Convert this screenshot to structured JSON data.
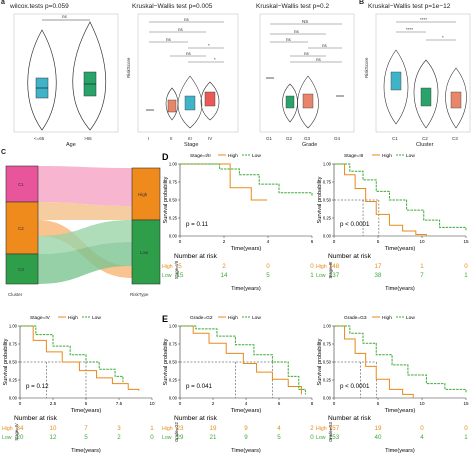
{
  "colors": {
    "high": "#e88a1a",
    "low": "#3aaa35",
    "c1": "#3fb4c9",
    "c2": "#2aa36b",
    "c3": "#e8866a",
    "sankey_pink": "#e8559a",
    "sankey_orange": "#ef8a1c",
    "sankey_green": "#2e9e4a"
  },
  "top": {
    "letter_a": "a",
    "a": {
      "title": "wilcox.tests p=0.059",
      "xlabel": "Age",
      "ylabel": "RiskScore",
      "ticks": [
        "<=65",
        ">65"
      ]
    },
    "b": {
      "title": "Kruskal−Wallis test p=0.005",
      "xlabel": "Stage",
      "ylabel": "RiskScore",
      "ticks": [
        "I",
        "II",
        "III",
        "IV"
      ],
      "sig": [
        "ns",
        "ns",
        "ns",
        "*",
        "ns",
        "*"
      ]
    },
    "c": {
      "title": "Kruskal−Wallis test p=0.2",
      "xlabel": "Grade",
      "ylabel": "RiskScore",
      "ticks": [
        "G1",
        "G2",
        "G3",
        "G4"
      ],
      "sig": [
        "NS",
        "ns",
        "ns",
        "ns",
        "ns",
        "ns"
      ]
    },
    "letter_b": "B",
    "d": {
      "title": "Kruskal−Wallis test p=1e−12",
      "xlabel": "Cluster",
      "ylabel": "RiskScore",
      "ticks": [
        "C1",
        "C2",
        "C3"
      ],
      "sig": [
        "****",
        "****",
        "*"
      ]
    }
  },
  "sankey": {
    "letter": "C",
    "left_label": "Cluster",
    "right_label": "RiskType",
    "nodes_left": [
      "C1",
      "C2",
      "C3"
    ],
    "nodes_right": [
      "High",
      "Low"
    ]
  },
  "km_plots": [
    {
      "id": "D",
      "letter": "D",
      "legend_title": "Stage=I/II",
      "pval": "p = 0.11",
      "xticks": [
        "0",
        "2",
        "4",
        "6"
      ],
      "ylabel": "Survival probability",
      "xlabel": "Time(years)",
      "risk_rows": [
        {
          "label": "High",
          "values": [
            "5",
            "2",
            "0",
            "0"
          ]
        },
        {
          "label": "Low",
          "values": [
            "15",
            "14",
            "5",
            "1"
          ]
        }
      ],
      "strata": "Stage=I/II"
    },
    {
      "id": "D2",
      "letter": "",
      "legend_title": "Stage=III",
      "pval": "p < 0.0001",
      "xticks": [
        "0",
        "5",
        "10",
        "15"
      ],
      "ylabel": "Survival probability",
      "xlabel": "Time(years)",
      "risk_rows": [
        {
          "label": "High",
          "values": [
            "148",
            "17",
            "1",
            "0"
          ]
        },
        {
          "label": "Low",
          "values": [
            "137",
            "38",
            "7",
            "1"
          ]
        }
      ],
      "strata": "Stage=III"
    },
    {
      "id": "D3",
      "letter": "",
      "legend_title": "Stage=IV",
      "pval": "p = 0.12",
      "xticks": [
        "0",
        "2.5",
        "5",
        "7.5",
        "10"
      ],
      "ylabel": "Survival probability",
      "xlabel": "Time(years)",
      "risk_rows": [
        {
          "label": "High",
          "values": [
            "34",
            "10",
            "7",
            "3",
            "1"
          ]
        },
        {
          "label": "Low",
          "values": [
            "20",
            "12",
            "5",
            "2",
            "0"
          ]
        }
      ],
      "strata": "Stage=IV"
    },
    {
      "id": "E",
      "letter": "E",
      "legend_title": "Grade=G2",
      "pval": "p = 0.041",
      "xticks": [
        "0",
        "2",
        "4",
        "6",
        "8"
      ],
      "ylabel": "Survival probability",
      "xlabel": "Time(years)",
      "risk_rows": [
        {
          "label": "High",
          "values": [
            "23",
            "19",
            "9",
            "4",
            "2"
          ]
        },
        {
          "label": "Low",
          "values": [
            "29",
            "21",
            "9",
            "5",
            "0"
          ]
        }
      ],
      "strata": "Grade=G2"
    },
    {
      "id": "E2",
      "letter": "",
      "legend_title": "Grade=G3",
      "pval": "p < 0.0001",
      "xticks": [
        "0",
        "5",
        "10",
        "15"
      ],
      "ylabel": "Survival probability",
      "xlabel": "Time(years)",
      "risk_rows": [
        {
          "label": "High",
          "values": [
            "157",
            "19",
            "0",
            "0"
          ]
        },
        {
          "label": "Low",
          "values": [
            "153",
            "40",
            "4",
            "1"
          ]
        }
      ],
      "strata": "Grade=G3"
    }
  ],
  "km_common": {
    "legend_high": "High",
    "legend_low": "Low",
    "risk_title": "Number at risk",
    "yticks": [
      "0.00",
      "0.25",
      "0.50",
      "0.75",
      "1.00"
    ]
  }
}
